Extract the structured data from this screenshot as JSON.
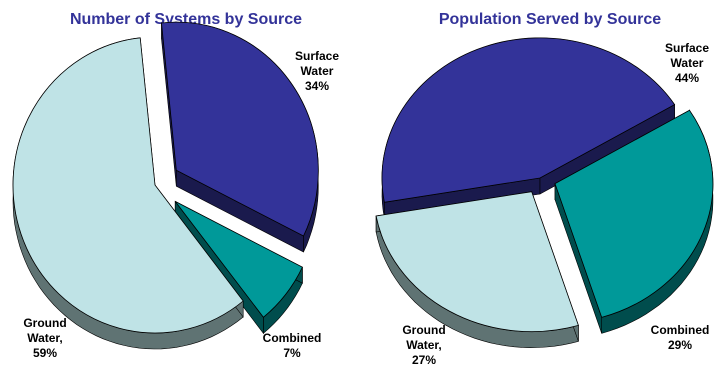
{
  "chart_data": [
    {
      "type": "pie",
      "title": "Number of Systems by Source",
      "slices": [
        {
          "label_lines": [
            "Surface",
            "Water"
          ],
          "value_text": "34%",
          "value": 34,
          "color": "#333399",
          "side": "#1a1a4d",
          "exploded": true
        },
        {
          "label_lines": [
            "Combined"
          ],
          "value_text": "7%",
          "value": 7,
          "color": "#009999",
          "side": "#004d4d",
          "exploded": true
        },
        {
          "label_lines": [
            "Ground",
            "Water,"
          ],
          "value_text": "59%",
          "value": 59,
          "color": "#bfe3e6",
          "side": "#5f7373",
          "exploded": false
        }
      ]
    },
    {
      "type": "pie",
      "title": "Population Served by Source",
      "slices": [
        {
          "label_lines": [
            "Surface",
            "Water"
          ],
          "value_text": "44%",
          "value": 44,
          "color": "#333399",
          "side": "#1a1a4d",
          "exploded": false
        },
        {
          "label_lines": [
            "Combined"
          ],
          "value_text": "29%",
          "value": 29,
          "color": "#009999",
          "side": "#004d4d",
          "exploded": true
        },
        {
          "label_lines": [
            "Ground",
            "Water,"
          ],
          "value_text": "27%",
          "value": 27,
          "color": "#bfe3e6",
          "side": "#5f7373",
          "exploded": true
        }
      ]
    }
  ],
  "title_color": "#333399"
}
